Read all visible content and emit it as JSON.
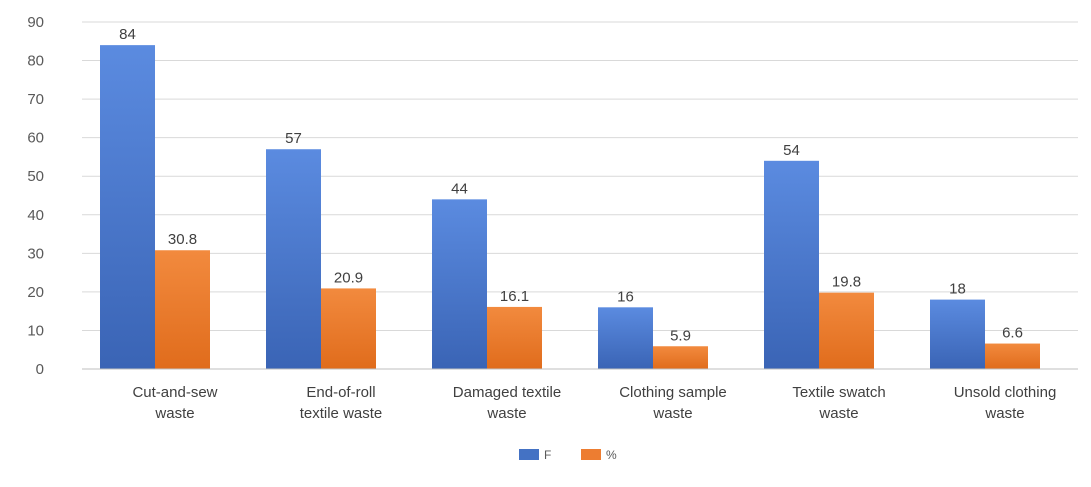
{
  "chart_data": {
    "type": "bar",
    "categories": [
      [
        "Cut-and-sew",
        "waste"
      ],
      [
        "End-of-roll",
        "textile waste"
      ],
      [
        "Damaged textile",
        "waste"
      ],
      [
        "Clothing sample",
        "waste"
      ],
      [
        "Textile swatch",
        "waste"
      ],
      [
        "Unsold clothing",
        "waste"
      ]
    ],
    "series": [
      {
        "name": "F",
        "values": [
          84,
          57,
          44,
          16,
          54,
          18
        ],
        "color": "#4472c4"
      },
      {
        "name": "%",
        "values": [
          30.8,
          20.9,
          16.1,
          5.9,
          19.8,
          6.6
        ],
        "color": "#ed7d31"
      }
    ],
    "ylim": [
      0,
      90
    ],
    "yticks": [
      0,
      10,
      20,
      30,
      40,
      50,
      60,
      70,
      80,
      90
    ],
    "grid": true,
    "legend": "bottom-center",
    "data_labels": true
  }
}
